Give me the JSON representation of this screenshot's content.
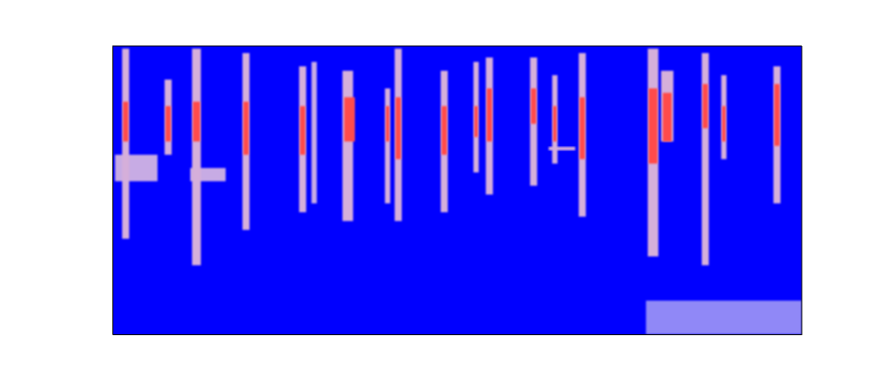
{
  "chart_data": {
    "type": "heatmap",
    "tick_labels": false,
    "xlim": [
      0,
      779
    ],
    "ylim": [
      0,
      326
    ],
    "color_range": [
      0,
      1
    ],
    "cells": [
      [
        3,
        51,
        173,
        203,
        0.45
      ],
      [
        11,
        19,
        108,
        323,
        0.5
      ],
      [
        12,
        18,
        218,
        263,
        0.9
      ],
      [
        59,
        67,
        203,
        288,
        0.5
      ],
      [
        60,
        66,
        218,
        258,
        0.9
      ],
      [
        88,
        128,
        173,
        188,
        0.45
      ],
      [
        90,
        100,
        78,
        323,
        0.5
      ],
      [
        91,
        99,
        218,
        263,
        0.9
      ],
      [
        147,
        155,
        118,
        318,
        0.5
      ],
      [
        148,
        154,
        203,
        263,
        0.9
      ],
      [
        211,
        219,
        138,
        303,
        0.5
      ],
      [
        212,
        218,
        203,
        258,
        0.9
      ],
      [
        225,
        231,
        148,
        308,
        0.45
      ],
      [
        260,
        272,
        128,
        298,
        0.5
      ],
      [
        262,
        274,
        218,
        268,
        0.9
      ],
      [
        308,
        314,
        148,
        278,
        0.5
      ],
      [
        309,
        313,
        218,
        258,
        0.9
      ],
      [
        319,
        327,
        128,
        323,
        0.5
      ],
      [
        320,
        326,
        198,
        268,
        0.9
      ],
      [
        371,
        379,
        138,
        298,
        0.5
      ],
      [
        372,
        378,
        203,
        258,
        0.9
      ],
      [
        408,
        414,
        183,
        308,
        0.5
      ],
      [
        409,
        413,
        223,
        258,
        0.9
      ],
      [
        422,
        430,
        158,
        313,
        0.5
      ],
      [
        423,
        429,
        218,
        278,
        0.9
      ],
      [
        472,
        480,
        168,
        313,
        0.5
      ],
      [
        473,
        479,
        238,
        278,
        0.9
      ],
      [
        493,
        523,
        208,
        212,
        0.5
      ],
      [
        497,
        503,
        193,
        293,
        0.5
      ],
      [
        498,
        502,
        218,
        258,
        0.9
      ],
      [
        527,
        535,
        133,
        318,
        0.5
      ],
      [
        528,
        534,
        198,
        268,
        0.9
      ],
      [
        605,
        617,
        88,
        323,
        0.5
      ],
      [
        606,
        616,
        193,
        278,
        0.9
      ],
      [
        620,
        634,
        218,
        298,
        0.5
      ],
      [
        622,
        632,
        218,
        273,
        0.9
      ],
      [
        666,
        674,
        78,
        318,
        0.5
      ],
      [
        667,
        673,
        233,
        283,
        0.9
      ],
      [
        688,
        694,
        198,
        293,
        0.5
      ],
      [
        689,
        693,
        218,
        258,
        0.9
      ],
      [
        747,
        755,
        148,
        303,
        0.5
      ],
      [
        748,
        754,
        213,
        283,
        0.9
      ],
      [
        603,
        779,
        0,
        38,
        0.3
      ]
    ]
  }
}
